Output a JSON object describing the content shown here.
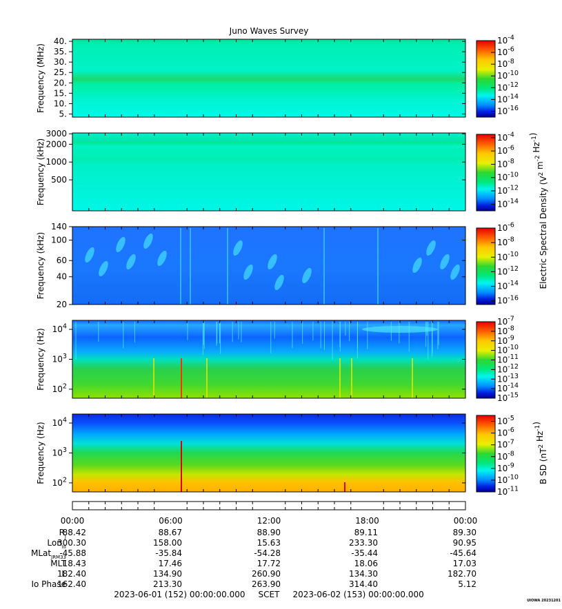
{
  "chart_data": {
    "type": "heatmap",
    "title": "Juno Waves Survey",
    "time_ticks": [
      "00:00",
      "06:00",
      "12:00",
      "18:00",
      "00:00"
    ],
    "panels": [
      {
        "ylabel": "Frequency (MHz)",
        "ylim": [
          3.5,
          41
        ],
        "ytick_labels": [
          "40.",
          "35.",
          "30.",
          "25.",
          "20.",
          "15.",
          "10.",
          "5."
        ],
        "ytick_values": [
          40,
          35,
          30,
          25,
          20,
          15,
          10,
          5
        ],
        "colorbar_labels": [
          "10^-4",
          "10^-6",
          "10^-8",
          "10^-10",
          "10^-12",
          "10^-14",
          "10^-16"
        ],
        "colorbar_exponents": [
          -4,
          -6,
          -8,
          -10,
          -12,
          -14,
          -16
        ],
        "colorbar_range": [
          -17,
          -4
        ],
        "features": "uniform cyan background with a bright green band at about 21 MHz"
      },
      {
        "ylabel": "Frequency (kHz)",
        "ylim": [
          150,
          3100
        ],
        "log_scale": true,
        "ytick_labels": [
          "3000",
          "2000",
          "1000",
          "500"
        ],
        "ytick_values": [
          3000,
          2000,
          1000,
          500
        ],
        "colorbar_labels": [
          "10^-4",
          "10^-6",
          "10^-8",
          "10^-10",
          "10^-12",
          "10^-14"
        ],
        "colorbar_exponents": [
          -4,
          -6,
          -8,
          -10,
          -12,
          -14
        ],
        "colorbar_range": [
          -15,
          -3.5
        ],
        "features": "cyan-green background with a green band at about 2000 kHz"
      },
      {
        "ylabel": "Frequency (kHz)",
        "ylim": [
          20,
          140
        ],
        "log_scale": true,
        "ytick_labels": [
          "140",
          "100",
          "60",
          "40",
          "20"
        ],
        "ytick_values": [
          140,
          100,
          60,
          40,
          20
        ],
        "colorbar_labels": [
          "10^-6",
          "10^-8",
          "10^-10",
          "10^-12",
          "10^-14",
          "10^-16"
        ],
        "colorbar_exponents": [
          -6,
          -8,
          -10,
          -12,
          -14,
          -16
        ],
        "colorbar_range": [
          -16.5,
          -6
        ],
        "features": "blue background with cyan emission patches"
      },
      {
        "ylabel": "Frequency (Hz)",
        "ylim": [
          50,
          20000
        ],
        "log_scale": true,
        "ytick_labels": [
          "10^4",
          "10^3",
          "10^2"
        ],
        "ytick_values": [
          10000,
          1000,
          100
        ],
        "colorbar_labels": [
          "10^-7",
          "10^-8",
          "10^-9",
          "10^-10",
          "10^-11",
          "10^-12",
          "10^-13",
          "10^-14",
          "10^-15"
        ],
        "colorbar_exponents": [
          -7,
          -8,
          -9,
          -10,
          -11,
          -12,
          -13,
          -14,
          -15
        ],
        "colorbar_range": [
          -15,
          -7
        ],
        "features": "green below about 1 kHz, blue above, vertical burst lines"
      },
      {
        "ylabel": "Frequency (Hz)",
        "ylim": [
          50,
          20000
        ],
        "log_scale": true,
        "ytick_labels": [
          "10^4",
          "10^3",
          "10^2"
        ],
        "ytick_values": [
          10000,
          1000,
          100
        ],
        "colorbar_labels": [
          "10^-5",
          "10^-6",
          "10^-7",
          "10^-8",
          "10^-9",
          "10^-10",
          "10^-11"
        ],
        "colorbar_exponents": [
          -5,
          -6,
          -7,
          -8,
          -9,
          -10,
          -11
        ],
        "colorbar_range": [
          -11,
          -4.5
        ],
        "colorbar_title": "B SD (nT^2 Hz^-1)",
        "features": "orange-yellow at low frequency grading to blue above 5 kHz"
      }
    ],
    "shared_colorbar_title": "Electric Spectral Density (V^2 m^-2 Hz^-1)",
    "ephemeris": {
      "rows": [
        {
          "label": "R",
          "sub": "J",
          "values": [
            "88.42",
            "88.67",
            "88.90",
            "89.11",
            "89.30"
          ]
        },
        {
          "label": "Lon",
          "sub": "III",
          "values": [
            "300.30",
            "158.00",
            "15.63",
            "233.30",
            "90.95"
          ]
        },
        {
          "label": "MLat",
          "sub": "JRM33",
          "values": [
            "-45.88",
            "-35.84",
            "-54.28",
            "-35.44",
            "-45.64"
          ]
        },
        {
          "label": "MLT",
          "sub": "",
          "values": [
            "18.43",
            "17.46",
            "17.72",
            "18.06",
            "17.03"
          ]
        },
        {
          "label": "L",
          "sub": "",
          "values": [
            "182.40",
            "134.90",
            "260.90",
            "134.30",
            "182.70"
          ]
        },
        {
          "label": "Io Phase",
          "sub": "",
          "values": [
            "162.40",
            "213.30",
            "263.90",
            "314.40",
            "5.12"
          ]
        }
      ]
    },
    "time_range_text": "2023-06-01 (152) 00:00:00.000     SCET     2023-06-02 (153) 00:00:00.000",
    "corner_tag": "UIOWA 20231201"
  }
}
